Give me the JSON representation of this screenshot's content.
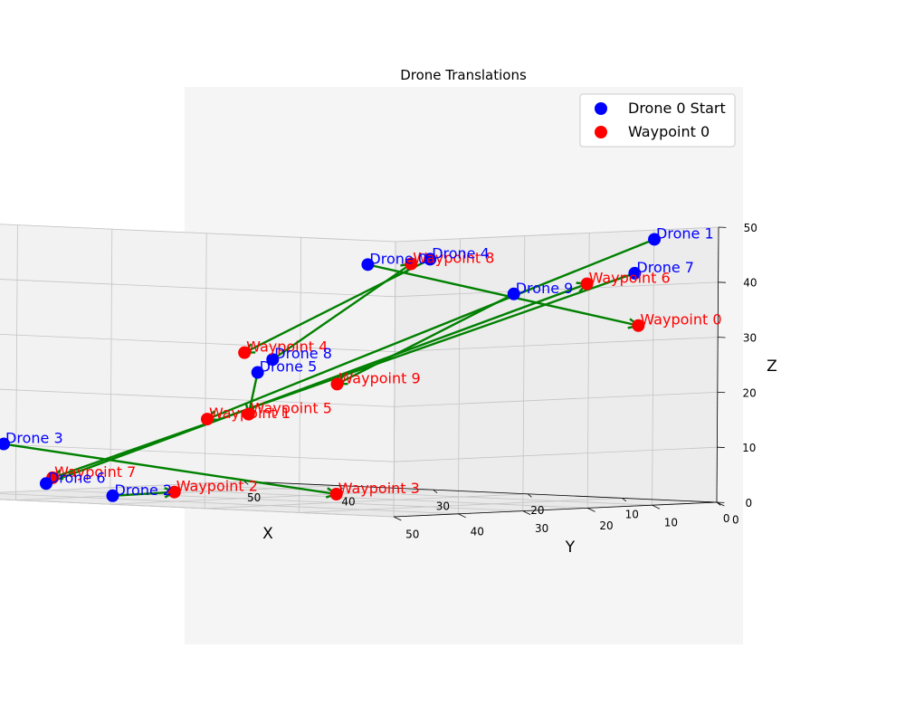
{
  "chart_data": {
    "type": "scatter",
    "title": "Drone Translations",
    "xlabel": "X",
    "ylabel": "Y",
    "zlabel": "Z",
    "xlim": [
      0,
      50
    ],
    "ylim": [
      0,
      50
    ],
    "zlim": [
      0,
      50
    ],
    "x_ticks": [
      "0",
      "10",
      "20",
      "30",
      "40",
      "50"
    ],
    "y_ticks": [
      "0",
      "10",
      "20",
      "30",
      "40",
      "50"
    ],
    "z_ticks": [
      "0",
      "10",
      "20",
      "30",
      "40",
      "50"
    ],
    "grid": true,
    "legend_position": "top-right",
    "legend": [
      {
        "label": "Drone 0 Start",
        "color": "#0000ff"
      },
      {
        "label": "Waypoint 0",
        "color": "#ff0000"
      }
    ],
    "colors": {
      "start": "#0000ff",
      "waypoint": "#ff0000",
      "path": "#008000"
    },
    "start_points": [
      {
        "label": "Drone 0",
        "x": 20,
        "y": 25,
        "z": 43
      },
      {
        "label": "Drone 1",
        "x": 2,
        "y": 7,
        "z": 48
      },
      {
        "label": "Drone 2",
        "x": 40,
        "y": 35,
        "z": 0
      },
      {
        "label": "Drone 3",
        "x": 42,
        "y": 49,
        "z": 10
      },
      {
        "label": "Drone 4",
        "x": 10,
        "y": 30,
        "z": 45
      },
      {
        "label": "Drone 5",
        "x": 35,
        "y": 20,
        "z": 22
      },
      {
        "label": "Drone 6",
        "x": 45,
        "y": 38,
        "z": 2
      },
      {
        "label": "Drone 7",
        "x": 2,
        "y": 10,
        "z": 42
      },
      {
        "label": "Drone 8",
        "x": 30,
        "y": 25,
        "z": 25
      },
      {
        "label": "Drone 9",
        "x": 10,
        "y": 17,
        "z": 38
      }
    ],
    "waypoints": [
      {
        "label": "Waypoint 0",
        "x": 5,
        "y": 5,
        "z": 32
      },
      {
        "label": "Waypoint 1",
        "x": 28,
        "y": 38,
        "z": 15
      },
      {
        "label": "Waypoint 2",
        "x": 28,
        "y": 43,
        "z": 2
      },
      {
        "label": "Waypoint 3",
        "x": 30,
        "y": 15,
        "z": 0
      },
      {
        "label": "Waypoint 4",
        "x": 20,
        "y": 44,
        "z": 28
      },
      {
        "label": "Waypoint 5",
        "x": 12,
        "y": 55,
        "z": 18
      },
      {
        "label": "Waypoint 6",
        "x": 5,
        "y": 13,
        "z": 40
      },
      {
        "label": "Waypoint 7",
        "x": 45,
        "y": 37,
        "z": 3
      },
      {
        "label": "Waypoint 8",
        "x": 12,
        "y": 30,
        "z": 44
      },
      {
        "label": "Waypoint 9",
        "x": 30,
        "y": 15,
        "z": 20
      }
    ]
  }
}
